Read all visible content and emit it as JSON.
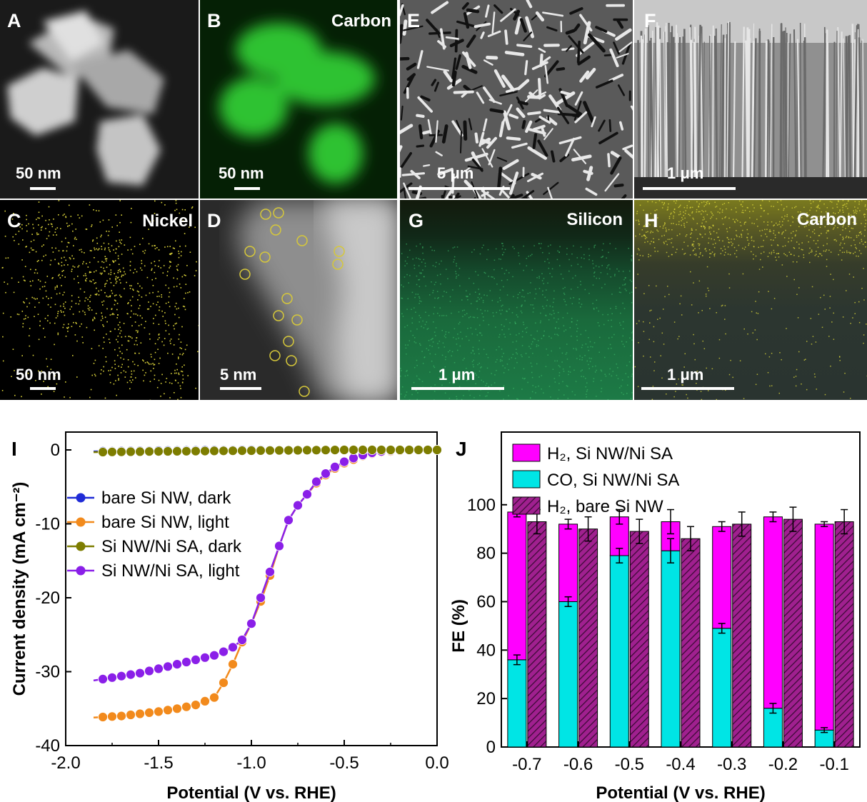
{
  "micrographs": {
    "A": {
      "label": "A",
      "scalebar": "50 nm"
    },
    "B": {
      "label": "B",
      "element": "Carbon",
      "scalebar": "50 nm"
    },
    "C": {
      "label": "C",
      "element": "Nickel",
      "scalebar": "50 nm"
    },
    "D": {
      "label": "D",
      "scalebar": "5 nm"
    },
    "E": {
      "label": "E",
      "scalebar": "5 μm"
    },
    "F": {
      "label": "F",
      "scalebar": "1 μm"
    },
    "G": {
      "label": "G",
      "element": "Silicon",
      "scalebar": "1 μm"
    },
    "H": {
      "label": "H",
      "element": "Carbon",
      "scalebar": "1 μm"
    }
  },
  "colors": {
    "blue": "#1f2bd6",
    "orange": "#f28a1c",
    "olive": "#7d7d00",
    "purple": "#8a1fe8",
    "magenta": "#ff00ff",
    "cyan": "#00e5e5",
    "hatch": "#a0208f",
    "carbon_map": "#33d63a",
    "nickel_map": "#d9d13a",
    "silicon_map": "#1c8a4d"
  },
  "chart_data": [
    {
      "panel": "I",
      "type": "line",
      "xlabel": "Potential (V vs. RHE)",
      "ylabel": "Current density (mA cm⁻²)",
      "xlim": [
        -2.0,
        0.0
      ],
      "ylim": [
        -40,
        0
      ],
      "xticks": [
        "-2.0",
        "-1.5",
        "-1.0",
        "-0.5",
        "0.0"
      ],
      "yticks": [
        "0",
        "-10",
        "-20",
        "-30",
        "-40"
      ],
      "legend": "center-left",
      "series": [
        {
          "name": "bare Si NW, dark",
          "color": "#1f2bd6",
          "x": [
            -1.85,
            -1.5,
            -1.0,
            -0.5,
            0.0
          ],
          "y": [
            -0.2,
            -0.1,
            0,
            0,
            0
          ]
        },
        {
          "name": "bare Si NW, light",
          "color": "#f28a1c",
          "x": [
            -1.85,
            -1.7,
            -1.6,
            -1.5,
            -1.4,
            -1.3,
            -1.2,
            -1.15,
            -1.1,
            -1.05,
            -1.0,
            -0.95,
            -0.9,
            -0.85,
            -0.8,
            -0.75,
            -0.7,
            -0.65,
            -0.6,
            -0.55,
            -0.5,
            -0.45,
            -0.4,
            -0.35,
            -0.3,
            -0.25,
            -0.2,
            -0.1,
            0.0
          ],
          "y": [
            -36.2,
            -36.0,
            -35.7,
            -35.4,
            -35.0,
            -34.5,
            -33.5,
            -31.5,
            -29.0,
            -26.0,
            -23.5,
            -20.5,
            -17.0,
            -13.0,
            -9.5,
            -7.5,
            -6.0,
            -4.5,
            -3.4,
            -2.5,
            -1.8,
            -1.3,
            -0.8,
            -0.5,
            -0.3,
            -0.2,
            -0.1,
            0,
            0
          ]
        },
        {
          "name": "Si NW/Ni SA, dark",
          "color": "#7d7d00",
          "x": [
            -1.85,
            -1.5,
            -1.0,
            -0.5,
            0.0
          ],
          "y": [
            -0.3,
            -0.2,
            -0.1,
            0,
            0
          ]
        },
        {
          "name": "Si NW/Ni SA, light",
          "color": "#8a1fe8",
          "x": [
            -1.85,
            -1.7,
            -1.6,
            -1.5,
            -1.4,
            -1.3,
            -1.2,
            -1.15,
            -1.1,
            -1.05,
            -1.0,
            -0.95,
            -0.9,
            -0.85,
            -0.8,
            -0.75,
            -0.7,
            -0.65,
            -0.6,
            -0.55,
            -0.5,
            -0.45,
            -0.4,
            -0.35,
            -0.3,
            -0.25,
            -0.2,
            -0.1,
            0.0
          ],
          "y": [
            -31.2,
            -30.6,
            -30.2,
            -29.6,
            -29.0,
            -28.4,
            -27.8,
            -27.3,
            -26.7,
            -25.7,
            -23.5,
            -20.0,
            -16.5,
            -13.0,
            -9.5,
            -7.5,
            -6.0,
            -4.3,
            -3.2,
            -2.3,
            -1.6,
            -1.1,
            -0.7,
            -0.4,
            -0.2,
            -0.1,
            0,
            0,
            0
          ]
        }
      ]
    },
    {
      "panel": "J",
      "type": "bar",
      "xlabel": "Potential (V vs. RHE)",
      "ylabel": "FE (%)",
      "ylim": [
        0,
        130
      ],
      "yticks": [
        "0",
        "20",
        "40",
        "60",
        "80",
        "100"
      ],
      "categories": [
        "-0.7",
        "-0.6",
        "-0.5",
        "-0.4",
        "-0.3",
        "-0.2",
        "-0.1"
      ],
      "legend": "top-left",
      "series": [
        {
          "name": "H₂, Si NW/Ni SA",
          "color": "#ff00ff",
          "stacked_on": "CO, Si NW/Ni SA",
          "values": [
            61,
            32,
            16,
            12,
            42,
            79,
            85
          ],
          "total": [
            97,
            92,
            95,
            93,
            91,
            95,
            92
          ],
          "total_err": [
            2,
            2,
            3,
            5,
            2,
            2,
            1
          ]
        },
        {
          "name": "CO, Si NW/Ni SA",
          "color": "#00e5e5",
          "values": [
            36,
            60,
            79,
            81,
            49,
            16,
            7
          ],
          "err": [
            2,
            2,
            3,
            5,
            2,
            2,
            1
          ]
        },
        {
          "name": "H₂, bare Si NW",
          "color": "#a0208f",
          "pattern": "hatched",
          "values": [
            93,
            90,
            89,
            86,
            92,
            94,
            93
          ],
          "err": [
            5,
            5,
            5,
            5,
            5,
            5,
            5
          ]
        }
      ]
    }
  ]
}
